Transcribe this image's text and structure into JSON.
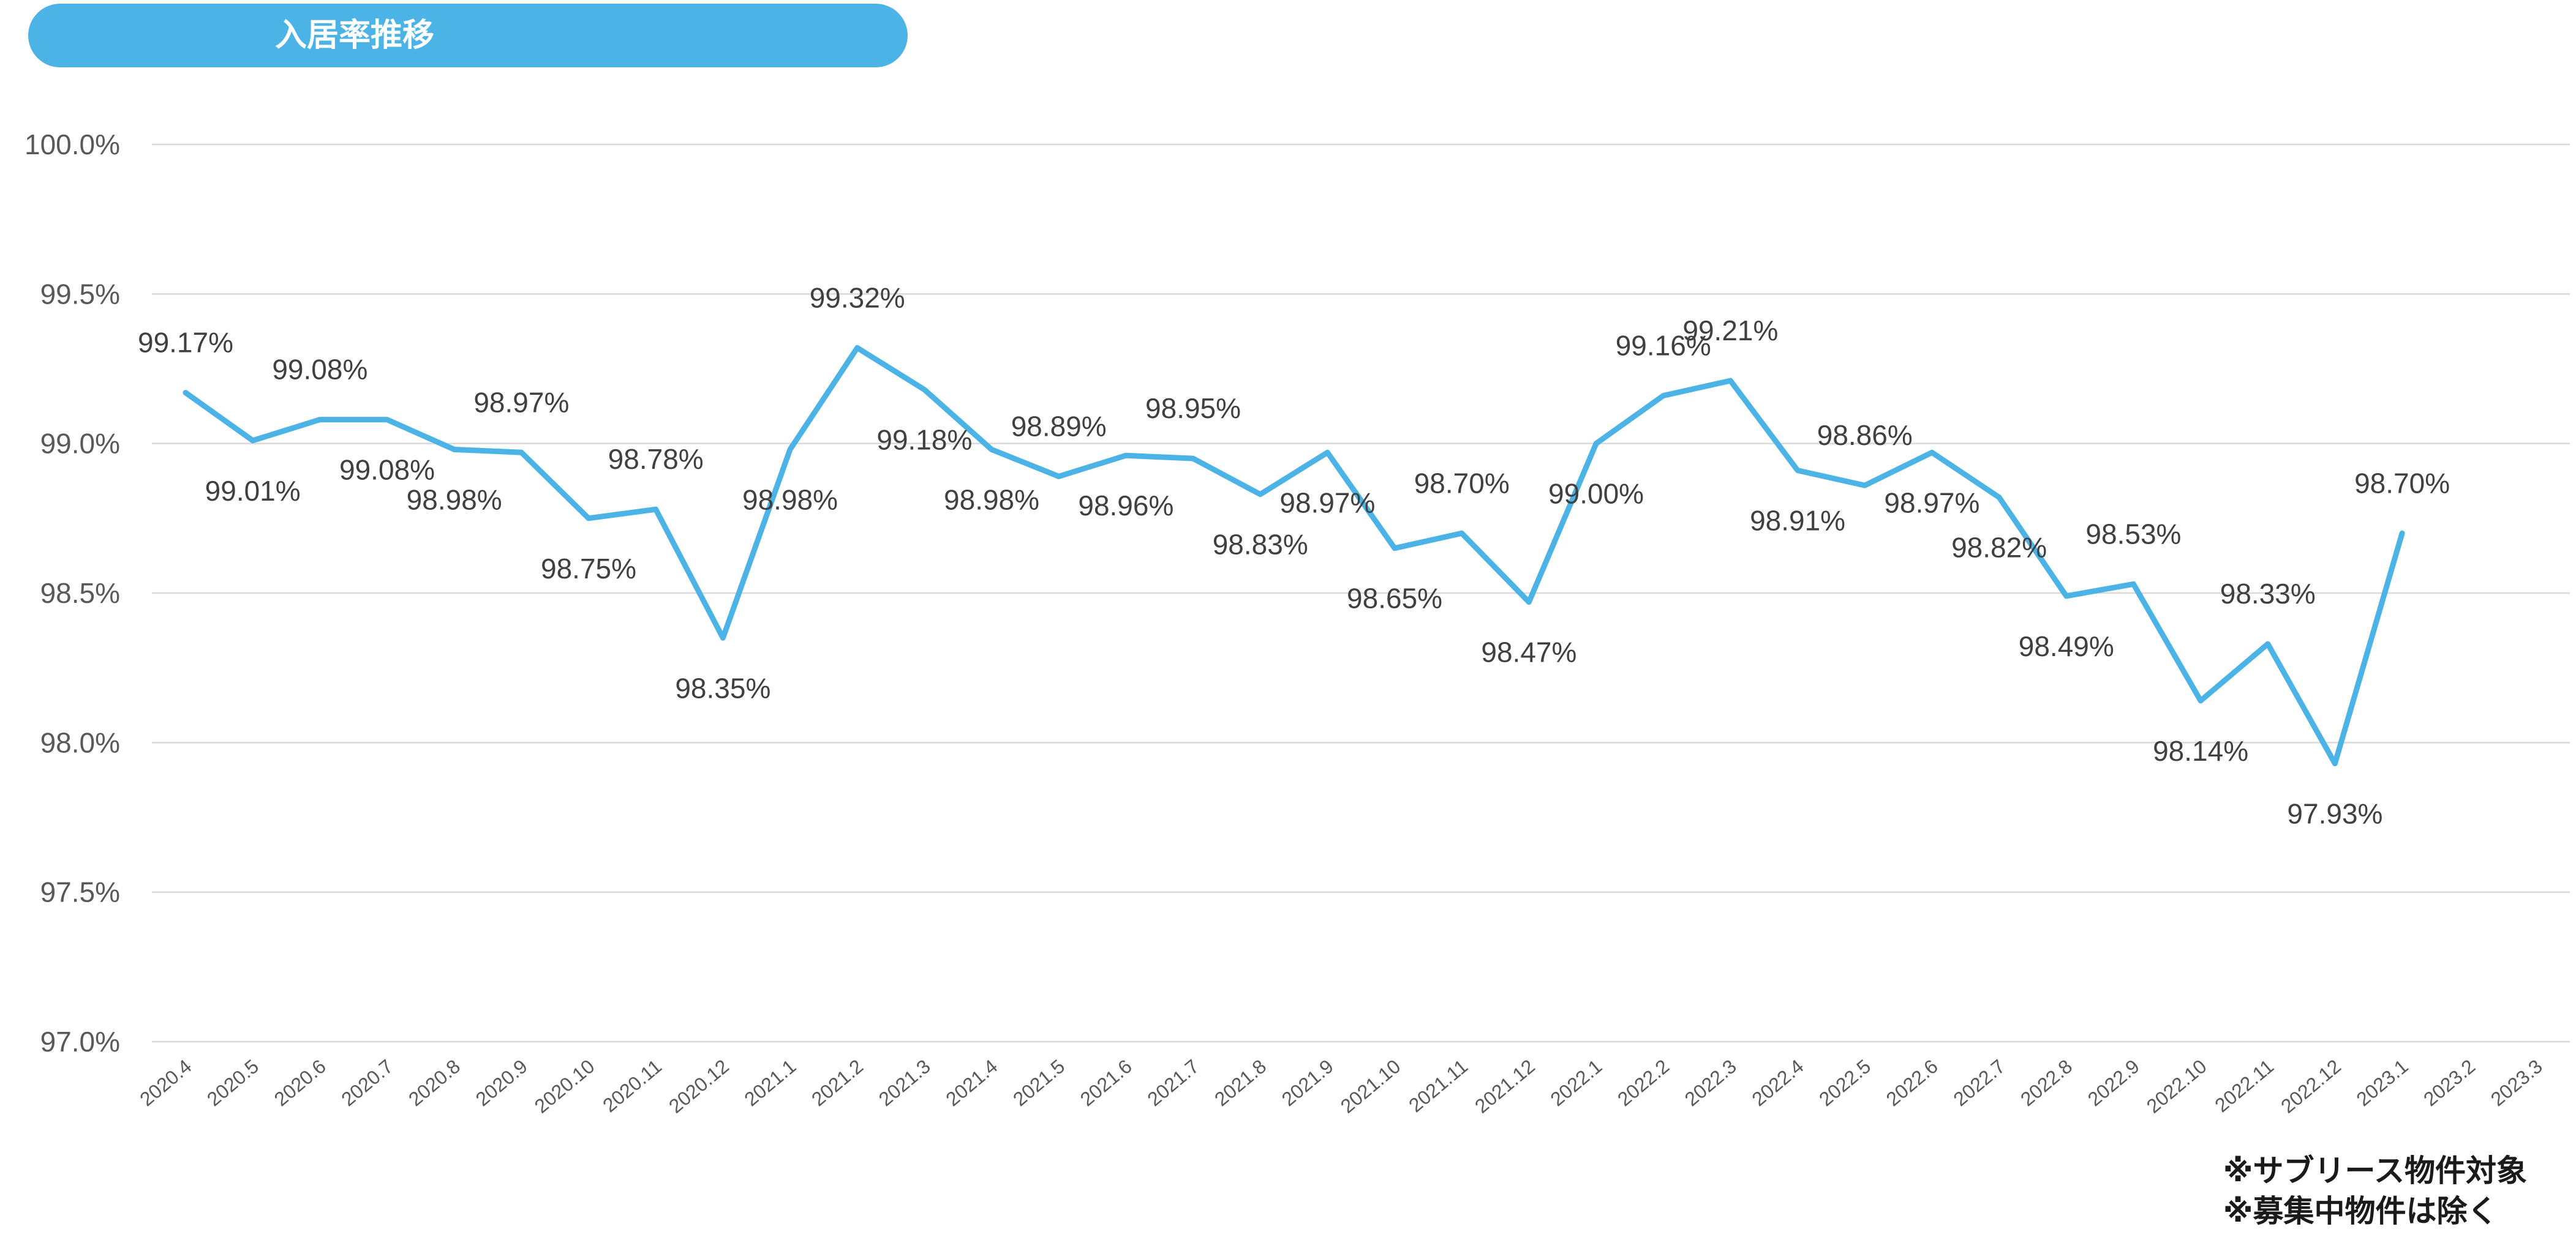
{
  "title": "入居率推移",
  "notes": [
    "※サブリース物件対象",
    "※募集中物件は除く"
  ],
  "colors": {
    "title_bg": "#4bb3e6",
    "line": "#4bb3e6",
    "grid": "#d9d9d9"
  },
  "chart_data": {
    "type": "line",
    "title": "入居率推移",
    "xlabel": "",
    "ylabel": "",
    "ylim": [
      97.0,
      100.0
    ],
    "yticks": [
      "97.0%",
      "97.5%",
      "98.0%",
      "98.5%",
      "99.0%",
      "99.5%",
      "100.0%"
    ],
    "ytick_values": [
      97.0,
      97.5,
      98.0,
      98.5,
      99.0,
      99.5,
      100.0
    ],
    "grid": true,
    "legend": "none",
    "categories": [
      "2020.4",
      "2020.5",
      "2020.6",
      "2020.7",
      "2020.8",
      "2020.9",
      "2020.10",
      "2020.11",
      "2020.12",
      "2021.1",
      "2021.2",
      "2021.3",
      "2021.4",
      "2021.5",
      "2021.6",
      "2021.7",
      "2021.8",
      "2021.9",
      "2021.10",
      "2021.11",
      "2021.12",
      "2022.1",
      "2022.2",
      "2022.3",
      "2022.4",
      "2022.5",
      "2022.6",
      "2022.7",
      "2022.8",
      "2022.9",
      "2022.10",
      "2022.11",
      "2022.12",
      "2023.1",
      "2023.2",
      "2023.3"
    ],
    "series": [
      {
        "values": [
          99.17,
          99.01,
          99.08,
          99.08,
          98.98,
          98.97,
          98.75,
          98.78,
          98.35,
          98.98,
          99.32,
          99.18,
          98.98,
          98.89,
          98.96,
          98.95,
          98.83,
          98.97,
          98.65,
          98.7,
          98.47,
          99.0,
          99.16,
          99.21,
          98.91,
          98.86,
          98.97,
          98.82,
          98.49,
          98.53,
          98.14,
          98.33,
          97.93,
          98.7,
          null,
          null
        ],
        "labels": [
          "99.17%",
          "99.01%",
          "99.08%",
          "99.08%",
          "98.98%",
          "98.97%",
          "98.75%",
          "98.78%",
          "98.35%",
          "98.98%",
          "99.32%",
          "99.18%",
          "98.98%",
          "98.89%",
          "98.96%",
          "98.95%",
          "98.83%",
          "98.97%",
          "98.65%",
          "98.70%",
          "98.47%",
          "99.00%",
          "99.16%",
          "99.21%",
          "98.91%",
          "98.86%",
          "98.97%",
          "98.82%",
          "98.49%",
          "98.53%",
          "98.14%",
          "98.33%",
          "97.93%",
          "98.70%",
          null,
          null
        ],
        "label_pos": [
          "above",
          "below",
          "above",
          "below",
          "below",
          "above",
          "below",
          "above",
          "below",
          "below",
          "above",
          "below",
          "below",
          "above",
          "below",
          "above",
          "below",
          "below",
          "below",
          "above",
          "below",
          "below",
          "above",
          "above",
          "below",
          "above",
          "below",
          "below",
          "below",
          "above",
          "below",
          "above",
          "below",
          "above",
          null,
          null
        ]
      }
    ]
  }
}
